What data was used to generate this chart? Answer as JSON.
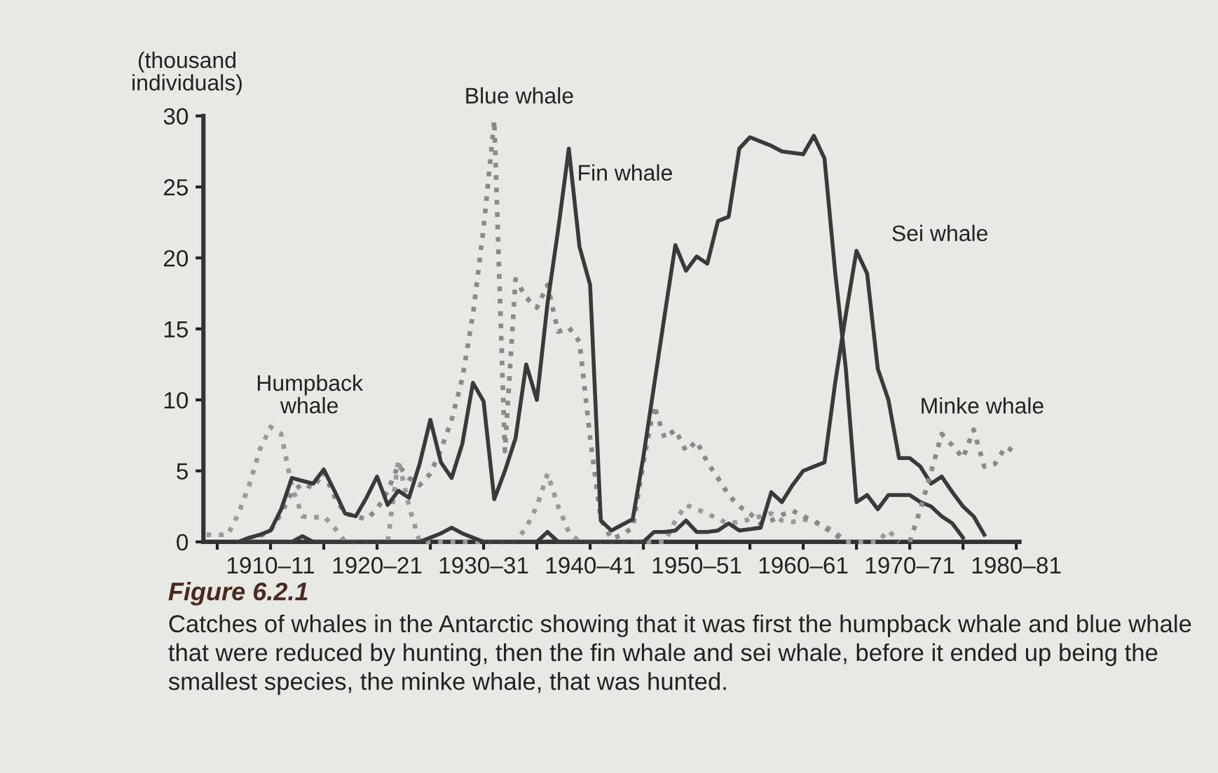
{
  "chart_data": {
    "type": "line",
    "title": "Figure 6.2.1",
    "ylabel": "(thousand individuals)",
    "annotations": [
      "Catches of whales in the Antarctic showing that it was first the humpback whale and blue whale that were reduced by hunting, then the fin whale and sei whale, before it ended up being the smallest species, the minke whale, that was hunted."
    ],
    "categories": [
      null,
      null,
      null,
      null,
      null,
      null,
      "1910–11",
      null,
      null,
      null,
      null,
      null,
      null,
      null,
      null,
      null,
      "1920–21",
      null,
      null,
      null,
      null,
      null,
      null,
      null,
      null,
      null,
      "1930–31",
      null,
      null,
      null,
      null,
      null,
      null,
      null,
      null,
      null,
      "1940–41",
      null,
      null,
      null,
      null,
      null,
      null,
      null,
      null,
      null,
      "1950–51",
      null,
      null,
      null,
      null,
      null,
      null,
      null,
      null,
      null,
      "1960–61",
      null,
      null,
      null,
      null,
      null,
      null,
      null,
      null,
      null,
      "1970–71",
      null,
      null,
      null,
      null,
      null,
      null,
      null,
      null,
      null,
      "1980–81"
    ],
    "ylim": [
      0,
      30
    ],
    "yticks": [
      0,
      5,
      10,
      15,
      20,
      25,
      30
    ],
    "grid": false,
    "legend": false,
    "marker": "none",
    "series": [
      {
        "name": "Humpback whale",
        "color": "#9a9a9a",
        "line_style": "dotted",
        "values": [
          0.5,
          0.5,
          0.5,
          2,
          4,
          6.5,
          8.1,
          7.6,
          3.9,
          1.8,
          1.7,
          1.8,
          1.0,
          0,
          0,
          0,
          0,
          0,
          5.8,
          2.5,
          0,
          0,
          0,
          0,
          0,
          0,
          0,
          0,
          0,
          0,
          1.0,
          2.5,
          4.8,
          2.5,
          0.7,
          0,
          0,
          0,
          0,
          0,
          0,
          0,
          0,
          0,
          1.5,
          2.6,
          2.3,
          2.0,
          1.6,
          1.3,
          1.4,
          1.6,
          1.8,
          2.0,
          1.5,
          1.4,
          1.6,
          1.4,
          1.1,
          0.7,
          0,
          0,
          0,
          0,
          0.8,
          0,
          null,
          null,
          null,
          null,
          null,
          null,
          null,
          null,
          null,
          null,
          null
        ]
      },
      {
        "name": "Blue whale",
        "color": "#8a8a8a",
        "line_style": "dotted",
        "values": [
          null,
          null,
          null,
          null,
          0,
          0.4,
          0.8,
          2,
          3.5,
          4.1,
          3.8,
          4.9,
          3.2,
          2.0,
          1.8,
          1.6,
          2.3,
          3.6,
          5.4,
          4.5,
          4.0,
          4.8,
          6.5,
          8.6,
          11.5,
          16,
          22.1,
          29.7,
          6.4,
          18.5,
          17.2,
          16.5,
          18.1,
          14.8,
          15.1,
          14.1,
          7.3,
          1.6,
          0.2,
          0.5,
          1.0,
          5.6,
          9.6,
          7.3,
          7.9,
          6.4,
          7.1,
          5.6,
          4.5,
          3.3,
          2.5,
          2.0,
          1.3,
          1.5,
          1.9,
          2.2,
          1.8,
          1.5,
          1.0,
          0.5,
          0,
          null,
          null,
          null,
          null,
          null,
          null,
          null,
          null,
          null,
          null,
          null,
          null,
          null,
          null,
          null,
          null
        ]
      },
      {
        "name": "Fin whale",
        "color": "#3a3a3a",
        "line_style": "solid",
        "values": [
          null,
          null,
          null,
          0,
          0.3,
          0.5,
          0.8,
          2.3,
          4.5,
          4.3,
          4.1,
          5.1,
          3.6,
          2.0,
          1.8,
          3.1,
          4.6,
          2.6,
          3.6,
          3.1,
          5.5,
          8.6,
          5.6,
          4.5,
          6.9,
          11.2,
          9.9,
          3.0,
          5.0,
          7.3,
          12.5,
          10,
          16.8,
          22,
          27.7,
          20.8,
          18.1,
          1.5,
          0.8,
          1.2,
          1.6,
          6,
          11,
          16,
          20.9,
          19.1,
          20.1,
          19.6,
          22.6,
          22.9,
          27.7,
          28.5,
          28.2,
          27.9,
          27.5,
          27.4,
          27.3,
          28.6,
          27,
          19,
          12.2,
          2.8,
          3.3,
          2.3,
          3.3,
          3.3,
          3.3,
          2.8,
          2.5,
          1.8,
          1.3,
          0.3,
          null,
          null,
          null,
          null,
          null
        ]
      },
      {
        "name": "Sei whale",
        "color": "#3a3a3a",
        "line_style": "solid",
        "values": [
          null,
          null,
          null,
          0,
          0,
          0,
          0,
          0,
          0,
          0.4,
          0,
          0,
          0,
          0,
          0,
          0,
          0,
          0,
          0,
          0,
          0,
          0.3,
          0.6,
          1.0,
          0.6,
          0.3,
          0,
          0,
          0,
          0,
          0,
          0,
          0.7,
          0,
          0,
          0,
          0,
          0,
          0,
          0,
          0,
          0,
          0.7,
          0.7,
          0.8,
          1.5,
          0.7,
          0.7,
          0.8,
          1.3,
          0.8,
          0.9,
          1.0,
          3.5,
          2.8,
          4.0,
          5.0,
          5.3,
          5.6,
          11.2,
          16,
          20.5,
          18.9,
          12.2,
          10,
          5.9,
          5.9,
          5.3,
          4.1,
          4.6,
          3.5,
          2.5,
          1.8,
          0.5,
          null,
          null,
          null
        ]
      },
      {
        "name": "Minke whale",
        "color": "#8a8a8a",
        "line_style": "dotted",
        "values": [
          null,
          null,
          null,
          null,
          null,
          null,
          null,
          null,
          null,
          null,
          null,
          null,
          null,
          null,
          null,
          null,
          null,
          null,
          null,
          null,
          null,
          null,
          null,
          null,
          null,
          null,
          null,
          null,
          null,
          null,
          null,
          null,
          null,
          null,
          null,
          null,
          null,
          null,
          null,
          null,
          null,
          null,
          null,
          null,
          null,
          null,
          null,
          null,
          null,
          null,
          null,
          null,
          null,
          null,
          null,
          null,
          null,
          null,
          null,
          null,
          null,
          null,
          null,
          null,
          null,
          null,
          0,
          2.3,
          4.9,
          7.6,
          6.8,
          5.9,
          7.9,
          5.3,
          5.5,
          6.7,
          6.3
        ]
      }
    ]
  }
}
